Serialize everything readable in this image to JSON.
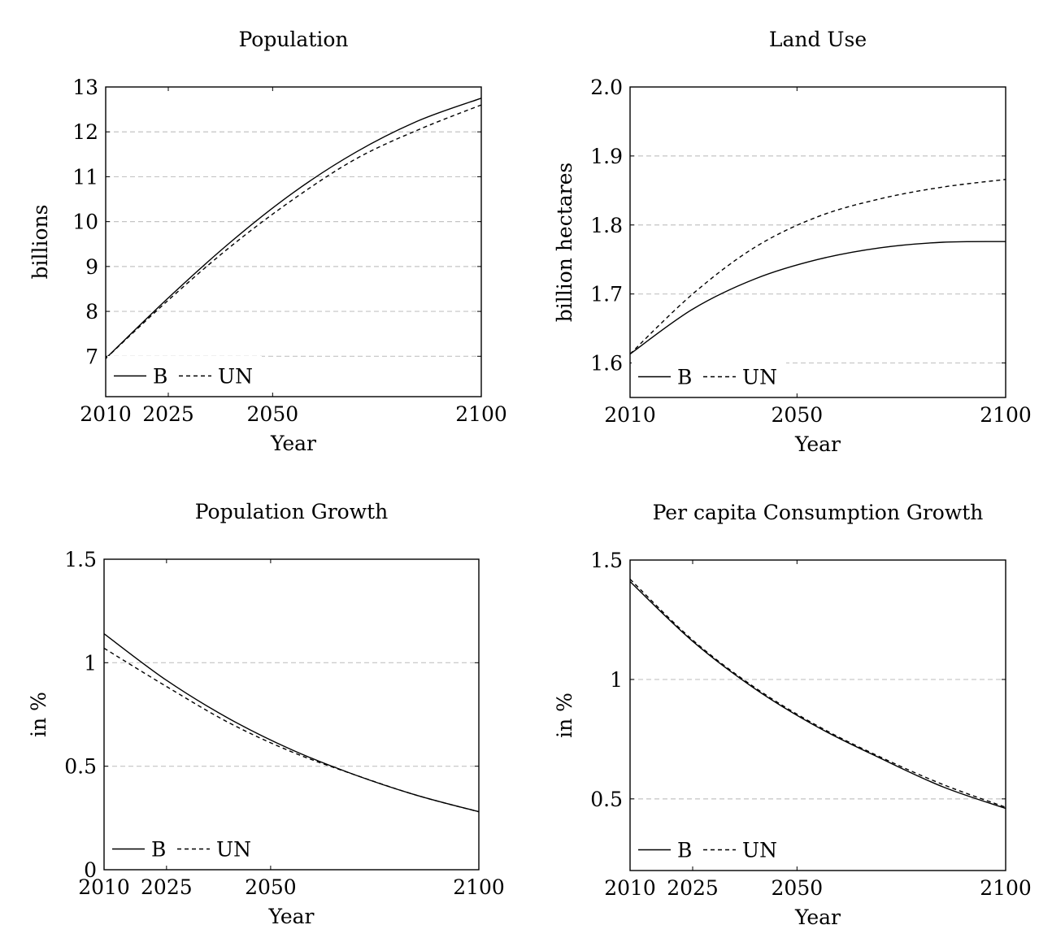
{
  "chart_data": [
    {
      "type": "line",
      "title": "Population",
      "xlabel": "Year",
      "ylabel": "billions",
      "xlim": [
        2010,
        2100
      ],
      "ylim": [
        6.1,
        13
      ],
      "xticks": [
        2010,
        2025,
        2050,
        2100
      ],
      "xtick_labels": [
        "2010",
        "2025",
        "2050",
        "2100"
      ],
      "yticks": [
        7,
        8,
        9,
        10,
        11,
        12,
        13
      ],
      "ytick_labels": [
        "7",
        "8",
        "9",
        "10",
        "11",
        "12",
        "13"
      ],
      "grid": "horizontal dashed",
      "legend": "bottom-left",
      "x": [
        2010,
        2025,
        2040,
        2055,
        2070,
        2085,
        2100
      ],
      "series": [
        {
          "name": "B",
          "style": "solid",
          "values": [
            6.95,
            8.3,
            9.55,
            10.65,
            11.55,
            12.25,
            12.75
          ]
        },
        {
          "name": "UN",
          "style": "dashed",
          "values": [
            6.95,
            8.25,
            9.45,
            10.5,
            11.4,
            12.05,
            12.6
          ]
        }
      ]
    },
    {
      "type": "line",
      "title": "Land Use",
      "xlabel": "Year",
      "ylabel": "billion hectares",
      "xlim": [
        2010,
        2100
      ],
      "ylim": [
        1.55,
        2.0
      ],
      "xticks": [
        2010,
        2050,
        2100
      ],
      "xtick_labels": [
        "2010",
        "2050",
        "2100"
      ],
      "yticks": [
        1.6,
        1.7,
        1.8,
        1.9,
        2.0
      ],
      "ytick_labels": [
        "1.6",
        "1.7",
        "1.8",
        "1.9",
        "2.0"
      ],
      "grid": "horizontal dashed",
      "legend": "bottom-left",
      "x": [
        2010,
        2025,
        2040,
        2055,
        2070,
        2085,
        2100
      ],
      "series": [
        {
          "name": "B",
          "style": "solid",
          "values": [
            1.613,
            1.678,
            1.722,
            1.75,
            1.767,
            1.775,
            1.776
          ]
        },
        {
          "name": "UN",
          "style": "dashed",
          "values": [
            1.613,
            1.7,
            1.768,
            1.812,
            1.838,
            1.855,
            1.866
          ]
        }
      ]
    },
    {
      "type": "line",
      "title": "Population Growth",
      "xlabel": "Year",
      "ylabel": "in %",
      "xlim": [
        2010,
        2100
      ],
      "ylim": [
        0,
        1.5
      ],
      "xticks": [
        2010,
        2025,
        2050,
        2100
      ],
      "xtick_labels": [
        "2010",
        "2025",
        "2050",
        "2100"
      ],
      "yticks": [
        0,
        0.5,
        1,
        1.5
      ],
      "ytick_labels": [
        "0",
        "0.5",
        "1",
        "1.5"
      ],
      "grid": "horizontal dashed",
      "legend": "bottom-left",
      "x": [
        2010,
        2025,
        2040,
        2055,
        2070,
        2085,
        2100
      ],
      "series": [
        {
          "name": "B",
          "style": "solid",
          "values": [
            1.14,
            0.915,
            0.73,
            0.58,
            0.46,
            0.36,
            0.28
          ]
        },
        {
          "name": "UN",
          "style": "dashed",
          "values": [
            1.07,
            0.885,
            0.71,
            0.57,
            0.46,
            0.36,
            0.28
          ]
        }
      ]
    },
    {
      "type": "line",
      "title": "Per capita Consumption Growth",
      "xlabel": "Year",
      "ylabel": "in %",
      "xlim": [
        2010,
        2100
      ],
      "ylim": [
        0.2,
        1.5
      ],
      "xticks": [
        2010,
        2025,
        2050,
        2100
      ],
      "xtick_labels": [
        "2010",
        "2025",
        "2050",
        "2100"
      ],
      "yticks": [
        0.5,
        1,
        1.5
      ],
      "ytick_labels": [
        "0.5",
        "1",
        "1.5"
      ],
      "grid": "horizontal dashed",
      "legend": "bottom-left",
      "x": [
        2010,
        2025,
        2040,
        2055,
        2070,
        2085,
        2100
      ],
      "series": [
        {
          "name": "B",
          "style": "solid",
          "values": [
            1.41,
            1.16,
            0.96,
            0.8,
            0.67,
            0.55,
            0.46
          ]
        },
        {
          "name": "UN",
          "style": "dashed",
          "values": [
            1.42,
            1.165,
            0.965,
            0.805,
            0.675,
            0.56,
            0.465
          ]
        }
      ]
    }
  ]
}
